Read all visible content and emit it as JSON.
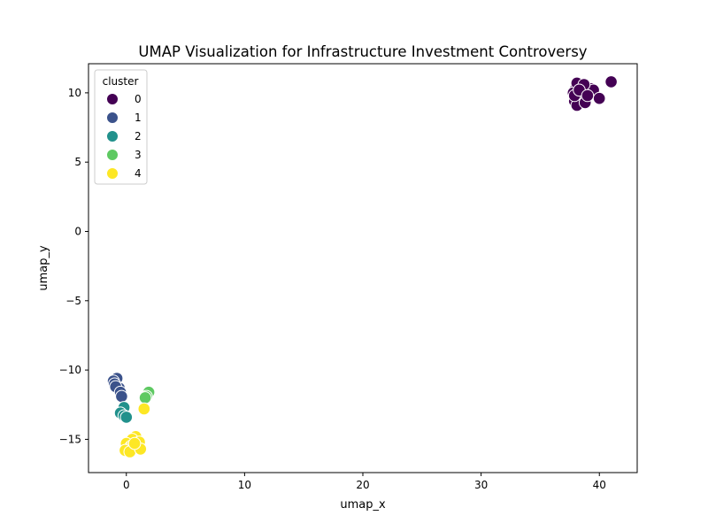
{
  "chart_data": {
    "type": "scatter",
    "title": "UMAP Visualization for Infrastructure Investment Controversy",
    "xlabel": "umap_x",
    "ylabel": "umap_y",
    "xlim": [
      -3.2,
      43.2
    ],
    "ylim": [
      -17.4,
      12.1
    ],
    "xticks": [
      0,
      10,
      20,
      30,
      40
    ],
    "yticks": [
      -15,
      -10,
      -5,
      0,
      5,
      10
    ],
    "grid": false,
    "legend": {
      "title": "cluster",
      "placement": "top-left"
    },
    "series": [
      {
        "name": "0",
        "color": "#440154",
        "points": [
          [
            38.5,
            10.6
          ],
          [
            38.9,
            10.4
          ],
          [
            39.3,
            10.3
          ],
          [
            38.0,
            10.3
          ],
          [
            37.8,
            10.0
          ],
          [
            38.2,
            9.7
          ],
          [
            38.6,
            9.9
          ],
          [
            39.0,
            10.1
          ],
          [
            39.5,
            10.2
          ],
          [
            38.4,
            10.4
          ],
          [
            37.9,
            9.4
          ],
          [
            38.1,
            9.1
          ],
          [
            38.8,
            9.3
          ],
          [
            40.0,
            9.6
          ],
          [
            37.9,
            9.8
          ],
          [
            38.1,
            10.7
          ],
          [
            38.7,
            10.6
          ],
          [
            38.3,
            10.2
          ],
          [
            39.0,
            9.8
          ],
          [
            41.0,
            10.8
          ]
        ]
      },
      {
        "name": "1",
        "color": "#3b528b",
        "points": [
          [
            -0.8,
            -10.6
          ],
          [
            -1.1,
            -10.8
          ],
          [
            -1.0,
            -11.0
          ],
          [
            -0.6,
            -11.3
          ],
          [
            -0.9,
            -11.2
          ],
          [
            -0.5,
            -11.6
          ],
          [
            -0.4,
            -11.9
          ]
        ]
      },
      {
        "name": "2",
        "color": "#21918c",
        "points": [
          [
            -0.2,
            -12.7
          ],
          [
            -0.5,
            -13.1
          ],
          [
            -0.2,
            -13.3
          ],
          [
            0.0,
            -13.4
          ]
        ]
      },
      {
        "name": "3",
        "color": "#5ec962",
        "points": [
          [
            1.9,
            -11.6
          ],
          [
            1.7,
            -11.9
          ],
          [
            1.6,
            -12.0
          ]
        ]
      },
      {
        "name": "4",
        "color": "#fde725",
        "points": [
          [
            1.5,
            -12.8
          ],
          [
            0.8,
            -14.8
          ],
          [
            0.5,
            -15.0
          ],
          [
            1.1,
            -15.2
          ],
          [
            0.0,
            -15.3
          ],
          [
            0.4,
            -15.5
          ],
          [
            0.9,
            -15.6
          ],
          [
            0.2,
            -15.7
          ],
          [
            -0.1,
            -15.8
          ],
          [
            0.3,
            -15.9
          ],
          [
            1.2,
            -15.7
          ],
          [
            0.7,
            -15.3
          ]
        ]
      }
    ]
  }
}
